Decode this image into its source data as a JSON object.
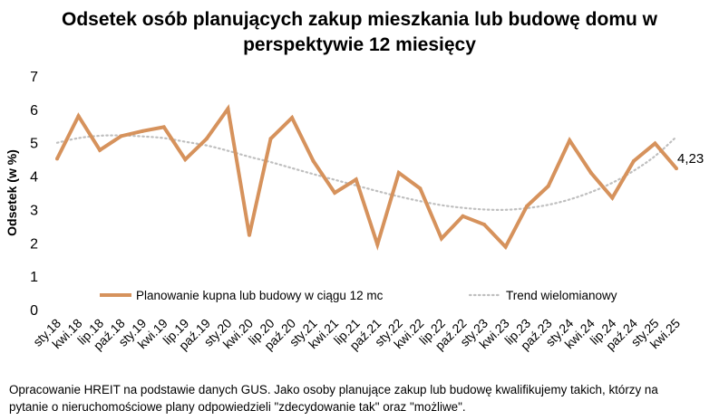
{
  "title_line1": "Odsetek osób planujących zakup mieszkania lub budowę domu w",
  "title_line2": "perspektywie 12 miesięcy",
  "note_line1": "Opracowanie HREIT na podstawie danych GUS. Jako osoby planujące zakup lub budowę kwalifikujemy takich, którzy na",
  "note_line2": "pytanie o nieruchomościowe plany odpowiedzieli \"zdecydowanie tak\" oraz \"możliwe\".",
  "colors": {
    "series": "#D6925C",
    "trend": "#BFBFBF",
    "text": "#000000"
  },
  "chart_data": {
    "type": "line",
    "ylabel": "Odsetek (w %)",
    "xlabel": "",
    "ylim": [
      0,
      7
    ],
    "yticks": [
      0,
      1,
      2,
      3,
      4,
      5,
      6,
      7
    ],
    "grid": false,
    "legend_position": "inside-bottom",
    "categories": [
      "sty.18",
      "kwi.18",
      "lip.18",
      "paź.18",
      "sty.19",
      "kwi.19",
      "lip.19",
      "paź.19",
      "sty.20",
      "kwi.20",
      "lip.20",
      "paź.20",
      "sty.21",
      "kwi.21",
      "lip.21",
      "paź.21",
      "sty.22",
      "kwi.22",
      "lip.22",
      "paź.22",
      "sty.23",
      "kwi.23",
      "lip.23",
      "paź.23",
      "sty.24",
      "kwi.24",
      "lip.24",
      "paź.24",
      "sty.25",
      "kwi.25"
    ],
    "series": [
      {
        "name": "Planowanie kupna lub budowy w ciągu 12 mc",
        "style": "solid",
        "values": [
          4.52,
          5.8,
          4.78,
          5.2,
          5.35,
          5.47,
          4.5,
          5.12,
          6.02,
          2.23,
          5.12,
          5.75,
          4.45,
          3.5,
          3.9,
          1.95,
          4.1,
          3.63,
          2.13,
          2.8,
          2.55,
          1.88,
          3.1,
          3.7,
          5.07,
          4.1,
          3.35,
          4.45,
          4.98,
          4.23
        ]
      },
      {
        "name": "Trend wielomianowy",
        "style": "dotted",
        "values": [
          5.0,
          5.14,
          5.21,
          5.22,
          5.19,
          5.14,
          5.03,
          4.92,
          4.76,
          4.58,
          4.42,
          4.24,
          4.06,
          3.89,
          3.72,
          3.55,
          3.39,
          3.25,
          3.13,
          3.05,
          3.0,
          2.99,
          3.04,
          3.14,
          3.3,
          3.52,
          3.8,
          4.16,
          4.6,
          5.18
        ]
      }
    ],
    "annotations": [
      {
        "text": "4,23",
        "series": 0,
        "point": 29
      }
    ]
  }
}
